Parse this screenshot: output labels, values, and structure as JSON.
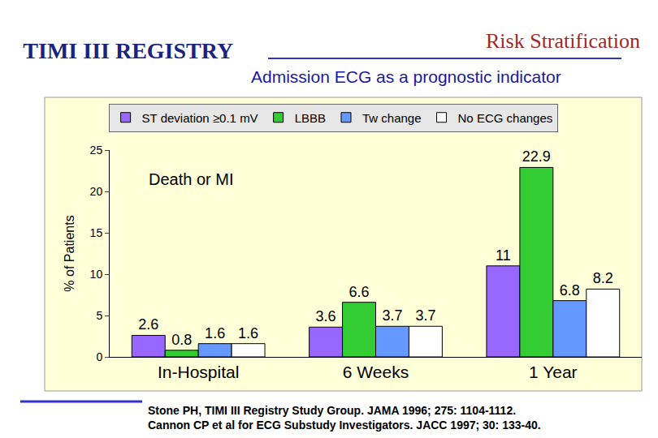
{
  "chart_data": {
    "type": "bar",
    "title": "TIMI III REGISTRY",
    "subtitle": "Admission ECG as a prognostic indicator",
    "annotations": [
      "Risk Stratification",
      "Death or MI"
    ],
    "y_label": "% of Patients",
    "source": [
      "Stone PH, TIMI III Registry Study Group. JAMA 1996; 275: 1104-1112.",
      "Cannon CP et al for ECG Substudy Investigators. JACC 1997; 30: 133-40."
    ],
    "categories": [
      "In-Hospital",
      "6 Weeks",
      "1 Year"
    ],
    "series": [
      {
        "name": "ST deviation ≥0.1 mV",
        "color": "#9966ff",
        "values": [
          2.6,
          3.6,
          11
        ]
      },
      {
        "name": "LBBB",
        "color": "#33cc33",
        "values": [
          0.8,
          6.6,
          22.9
        ]
      },
      {
        "name": "Tw change",
        "color": "#6699ff",
        "values": [
          1.6,
          3.7,
          6.8
        ]
      },
      {
        "name": "No ECG changes",
        "color": "#ffffff",
        "values": [
          1.6,
          3.7,
          8.2
        ]
      }
    ],
    "ylim": [
      0,
      25
    ],
    "yticks": [
      0,
      5,
      10,
      15,
      20,
      25
    ],
    "grid": false,
    "data_labels": true,
    "legend": "top"
  }
}
